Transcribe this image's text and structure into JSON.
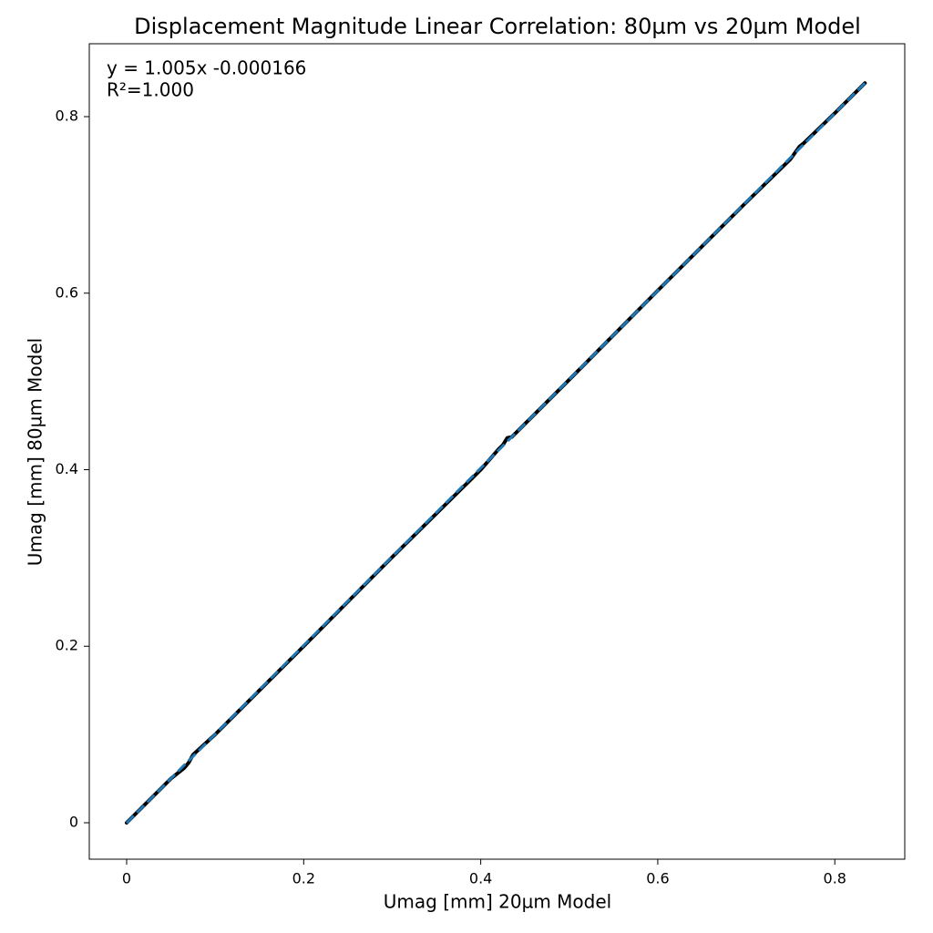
{
  "chart_data": {
    "type": "line",
    "title": "Displacement Magnitude Linear Correlation: 80µm vs 20µm Model",
    "xlabel": "Umag [mm] 20µm Model",
    "ylabel": "Umag [mm] 80µm Model",
    "annotations": [
      "y = 1.005x -0.000166",
      "R²=1.000"
    ],
    "xlim": [
      -0.0422,
      0.879
    ],
    "ylim": [
      -0.0413,
      0.8826
    ],
    "xticks": [
      0,
      0.2,
      0.4,
      0.6,
      0.8
    ],
    "yticks": [
      0,
      0.2,
      0.4,
      0.6,
      0.8
    ],
    "grid": false,
    "series": [
      {
        "color": "#000000",
        "dashed": false,
        "x": [
          0,
          0.05,
          0.065,
          0.07,
          0.075,
          0.1,
          0.2,
          0.3,
          0.39,
          0.4,
          0.42,
          0.425,
          0.43,
          0.435,
          0.5,
          0.6,
          0.7,
          0.75,
          0.76,
          0.765,
          0.8,
          0.834
        ],
        "values": [
          0,
          0.05,
          0.062,
          0.068,
          0.077,
          0.1,
          0.2,
          0.301,
          0.39,
          0.4,
          0.423,
          0.428,
          0.436,
          0.437,
          0.502,
          0.603,
          0.703,
          0.752,
          0.766,
          0.77,
          0.804,
          0.838
        ]
      },
      {
        "color": "#1f77b4",
        "dashed": true,
        "x": [
          0,
          0.834
        ],
        "values": [
          -0.000166,
          0.838
        ]
      }
    ]
  }
}
